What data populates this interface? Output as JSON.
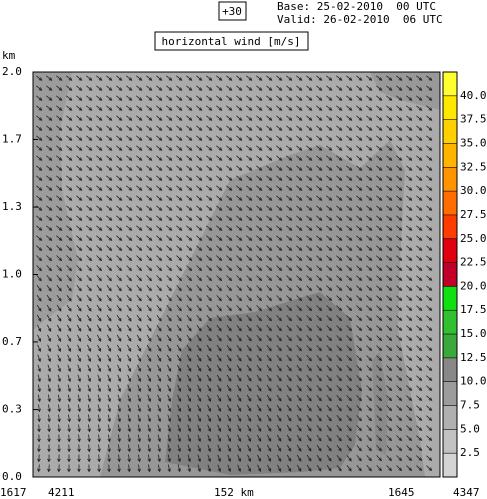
{
  "chart_data": {
    "type": "contour",
    "forecast_hour": "+30",
    "base": "Base: 25-02-2010  00 UTC",
    "valid": "Valid: 26-02-2010  06 UTC",
    "title": "horizontal wind [m/s]",
    "y_label": "km",
    "ylim": [
      0,
      2
    ],
    "yticks": [
      {
        "value": 0,
        "label": "0.0"
      },
      {
        "value": 0.333,
        "label": "0.3"
      },
      {
        "value": 0.667,
        "label": "0.7"
      },
      {
        "value": 1,
        "label": "1.0"
      },
      {
        "value": 1.333,
        "label": "1.3"
      },
      {
        "value": 1.667,
        "label": "1.7"
      },
      {
        "value": 2,
        "label": "2.0"
      }
    ],
    "x_labels": [
      "1617",
      "4211",
      "152 km",
      "1645",
      "4347"
    ],
    "colorbar": {
      "clim": [
        0,
        42.5
      ],
      "ticks": [
        2.5,
        {
          "value": 5,
          "label": "5.0"
        },
        7.5,
        {
          "value": 10,
          "label": "10.0"
        },
        12.5,
        {
          "value": 15,
          "label": "15.0"
        },
        17.5,
        {
          "value": 20,
          "label": "20.0"
        },
        22.5,
        {
          "value": 25,
          "label": "25.0"
        },
        27.5,
        {
          "value": 30,
          "label": "30.0"
        },
        32.5,
        {
          "value": 35,
          "label": "35.0"
        },
        37.5,
        {
          "value": 40,
          "label": "40.0"
        }
      ],
      "colors": [
        "#d4d4d4",
        "#c2c2c2",
        "#b0b0b0",
        "#9c9c9c",
        "#888888",
        "#3aa83a",
        "#30c030",
        "#10e010",
        "#c00028",
        "#e00010",
        "#ff3c00",
        "#ff6c00",
        "#ff9400",
        "#ffb400",
        "#ffd000",
        "#ffe800",
        "#ffff30"
      ]
    }
  }
}
